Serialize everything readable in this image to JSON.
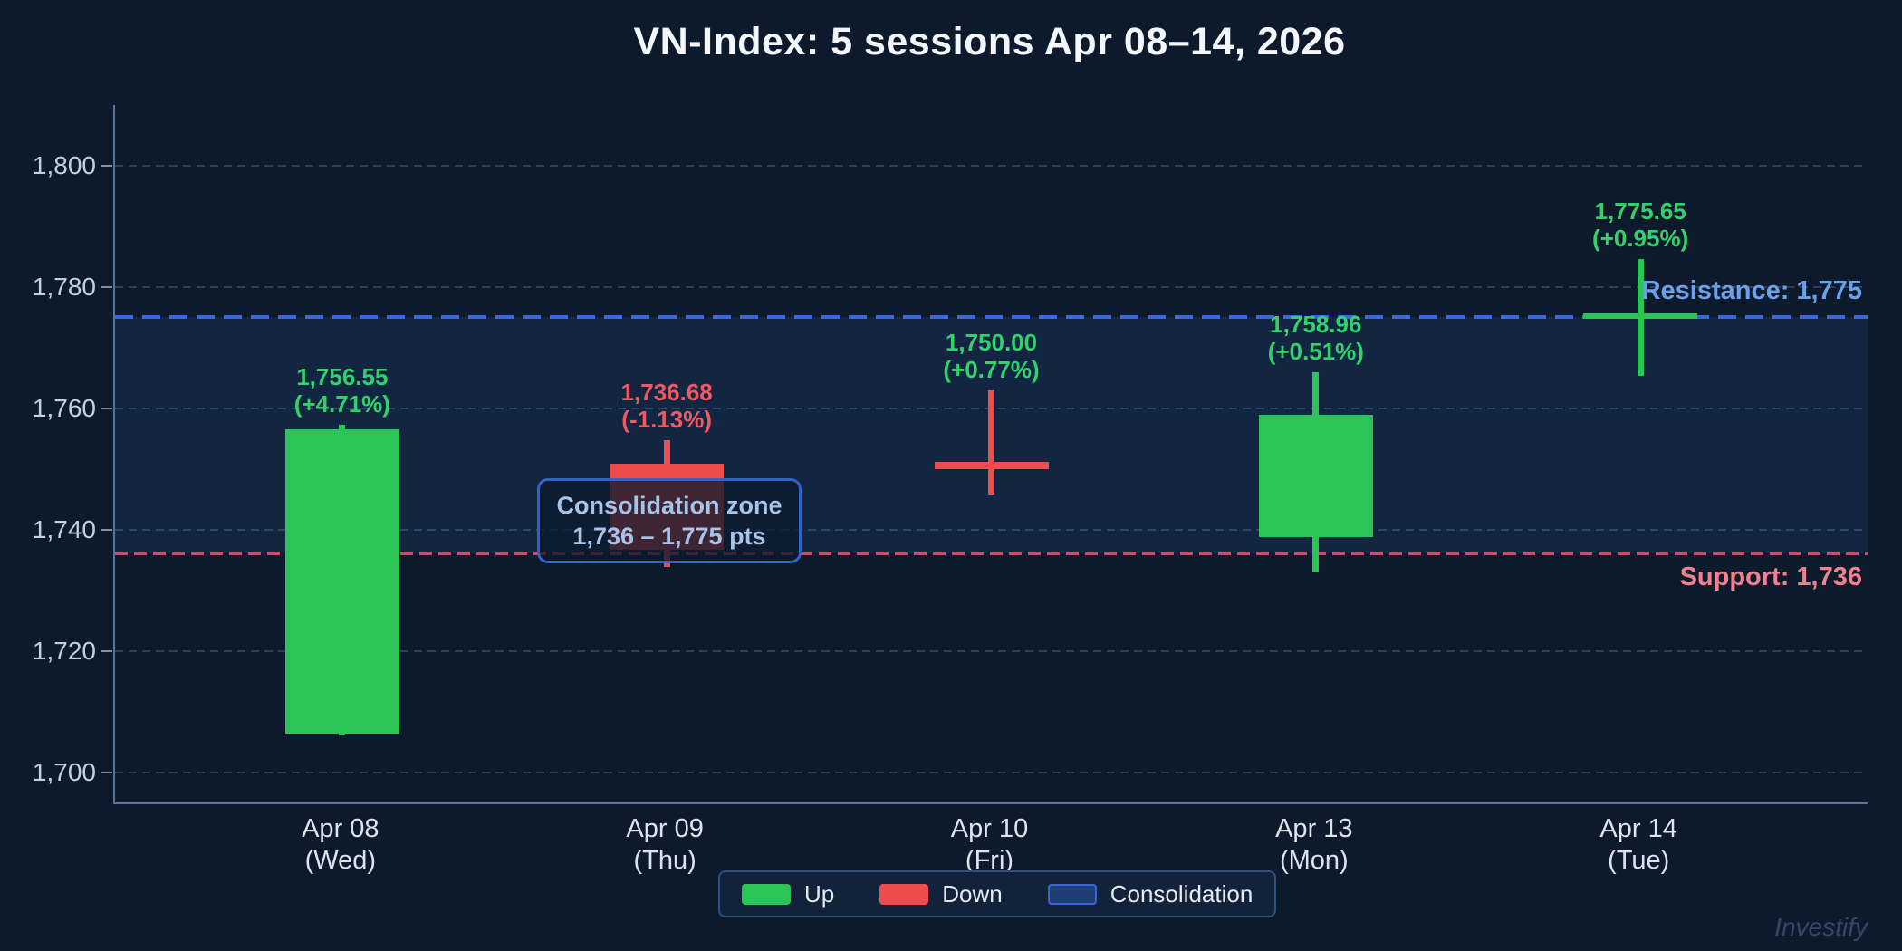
{
  "title": "VN-Index: 5 sessions Apr 08–14, 2026",
  "watermark": "Investify",
  "colors": {
    "background": "#0d1a2b",
    "up": "#2bc456",
    "down": "#ef4c4c",
    "up_label": "#31d16b",
    "down_label": "#f15862",
    "resistance_line": "#3a66d9",
    "resistance_label": "#6ba0ea",
    "support_line": "#c9506a",
    "support_label": "#f2808d",
    "zone_fill": "rgba(45,90,165,0.18)",
    "title_text": "#f3f7fb",
    "axis_text": "#c5d0de"
  },
  "chart_data": {
    "type": "candlestick",
    "title": "VN-Index: 5 sessions Apr 08–14, 2026",
    "ylim": [
      1695,
      1810
    ],
    "yticks": [
      1700,
      1720,
      1740,
      1760,
      1780,
      1800
    ],
    "ytick_labels": [
      "1,700",
      "1,720",
      "1,740",
      "1,760",
      "1,780",
      "1,800"
    ],
    "grid": "dashed horizontal",
    "legend_position": "bottom center",
    "candles": [
      {
        "date": "Apr 08",
        "day": "(Wed)",
        "open": 1706.4,
        "high": 1757.3,
        "low": 1706.0,
        "close": 1756.55,
        "body": "up",
        "change": "up",
        "label_value": "1,756.55",
        "label_change": "(+4.71%)"
      },
      {
        "date": "Apr 09",
        "day": "(Thu)",
        "open": 1750.8,
        "high": 1754.8,
        "low": 1733.9,
        "close": 1736.68,
        "body": "down",
        "change": "down",
        "label_value": "1,736.68",
        "label_change": "(-1.13%)"
      },
      {
        "date": "Apr 10",
        "day": "(Fri)",
        "open": 1751.2,
        "high": 1763.0,
        "low": 1745.8,
        "close": 1750.0,
        "body": "down",
        "change": "up",
        "label_value": "1,750.00",
        "label_change": "(+0.77%)"
      },
      {
        "date": "Apr 13",
        "day": "(Mon)",
        "open": 1738.8,
        "high": 1765.9,
        "low": 1732.9,
        "close": 1758.96,
        "body": "up",
        "change": "up",
        "label_value": "1,758.96",
        "label_change": "(+0.51%)"
      },
      {
        "date": "Apr 14",
        "day": "(Tue)",
        "open": 1774.9,
        "high": 1784.6,
        "low": 1765.4,
        "close": 1775.65,
        "body": "up",
        "change": "up",
        "label_value": "1,775.65",
        "label_change": "(+0.95%)"
      }
    ],
    "resistance": {
      "value": 1775,
      "label": "Resistance: 1,775"
    },
    "support": {
      "value": 1736,
      "label": "Support: 1,736"
    },
    "consolidation_zone": {
      "from": 1736,
      "to": 1775
    },
    "annotation": {
      "line1": "Consolidation zone",
      "line2": "1,736 – 1,775 pts"
    },
    "legend": [
      {
        "label": "Up",
        "type": "up"
      },
      {
        "label": "Down",
        "type": "down"
      },
      {
        "label": "Consolidation",
        "type": "zone"
      }
    ]
  }
}
